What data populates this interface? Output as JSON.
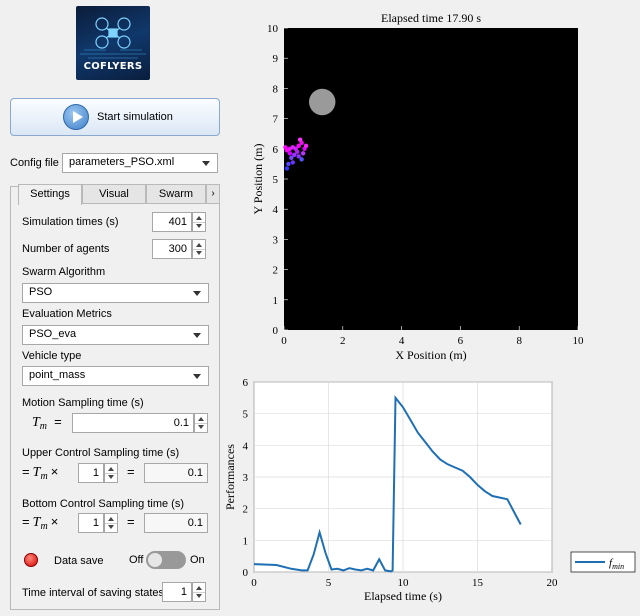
{
  "logo": {
    "text": "COFLYERS"
  },
  "start_button": {
    "label": "Start simulation"
  },
  "config": {
    "label": "Config file",
    "value": "parameters_PSO.xml"
  },
  "tabs": [
    {
      "label": "Settings"
    },
    {
      "label": "Visual"
    },
    {
      "label": "Swarm"
    }
  ],
  "settings": {
    "simulation_times": {
      "label": "Simulation times (s)",
      "value": "401"
    },
    "num_agents": {
      "label": "Number of agents",
      "value": "300"
    },
    "swarm_algorithm": {
      "label": "Swarm Algorithm",
      "value": "PSO"
    },
    "evaluation_metrics": {
      "label": "Evaluation Metrics",
      "value": "PSO_eva"
    },
    "vehicle_type": {
      "label": "Vehicle type",
      "value": "point_mass"
    },
    "motion_sampling": {
      "label": "Motion Sampling time (s)",
      "sym": "T",
      "sub": "m",
      "eq": "=",
      "value": "0.1"
    },
    "upper_control": {
      "label": "Upper Control Sampling time (s)",
      "prefix": "=",
      "sym": "T",
      "sub": "m",
      "times": "×",
      "multiplier": "1",
      "eq": "=",
      "value": "0.1"
    },
    "bottom_control": {
      "label": "Bottom Control Sampling time (s)",
      "prefix": "=",
      "sym": "T",
      "sub": "m",
      "times": "×",
      "multiplier": "1",
      "eq": "=",
      "value": "0.1"
    },
    "data_save": {
      "label": "Data save",
      "off": "Off",
      "on": "On",
      "state": "off",
      "led_color": "#d40000"
    },
    "save_interval": {
      "label": "Time interval of saving states",
      "value": "1"
    }
  },
  "chart_data": [
    {
      "type": "scatter",
      "title": "Elapsed time 17.90 s",
      "xlabel": "X Position (m)",
      "ylabel": "Y Position (m)",
      "xlim": [
        0,
        10
      ],
      "ylim": [
        0,
        10
      ],
      "xticks": [
        "0",
        "2",
        "4",
        "6",
        "8",
        "10"
      ],
      "yticks": [
        "0",
        "1",
        "2",
        "3",
        "4",
        "5",
        "6",
        "7",
        "8",
        "9",
        "10"
      ],
      "background": "#000000",
      "obstacle": {
        "x": 1.3,
        "y": 7.55,
        "r": 0.45,
        "color": "#9a9a9a"
      },
      "agents": [
        {
          "x": 0.1,
          "y": 5.95,
          "c": "#ff00ff"
        },
        {
          "x": 0.2,
          "y": 6.0,
          "c": "#ee11ff"
        },
        {
          "x": 0.3,
          "y": 6.05,
          "c": "#dd22ff"
        },
        {
          "x": 0.4,
          "y": 6.0,
          "c": "#cc22ff"
        },
        {
          "x": 0.5,
          "y": 6.1,
          "c": "#ff00ff"
        },
        {
          "x": 0.55,
          "y": 6.3,
          "c": "#ff33ff"
        },
        {
          "x": 0.6,
          "y": 6.2,
          "c": "#ee11ee"
        },
        {
          "x": 0.7,
          "y": 6.0,
          "c": "#dd00ff"
        },
        {
          "x": 0.65,
          "y": 5.85,
          "c": "#bb33ff"
        },
        {
          "x": 0.45,
          "y": 5.9,
          "c": "#aa22ee"
        },
        {
          "x": 0.35,
          "y": 5.8,
          "c": "#9933ff"
        },
        {
          "x": 0.25,
          "y": 5.7,
          "c": "#7744ff"
        },
        {
          "x": 0.15,
          "y": 5.5,
          "c": "#5544ff"
        },
        {
          "x": 0.1,
          "y": 5.35,
          "c": "#3333ff"
        },
        {
          "x": 0.3,
          "y": 5.55,
          "c": "#6633ff"
        },
        {
          "x": 0.5,
          "y": 5.75,
          "c": "#8833ff"
        },
        {
          "x": 0.6,
          "y": 5.65,
          "c": "#5555ff"
        },
        {
          "x": 0.2,
          "y": 5.85,
          "c": "#cc00ff"
        },
        {
          "x": 0.75,
          "y": 6.1,
          "c": "#ff22ff"
        },
        {
          "x": 0.05,
          "y": 6.05,
          "c": "#ff00ff"
        }
      ]
    },
    {
      "type": "line",
      "xlabel": "Elapsed time (s)",
      "ylabel": "Performances",
      "xlim": [
        0,
        20
      ],
      "ylim": [
        0,
        6
      ],
      "xticks": [
        "0",
        "5",
        "10",
        "15",
        "20"
      ],
      "yticks": [
        "0",
        "1",
        "2",
        "3",
        "4",
        "5",
        "6"
      ],
      "grid": true,
      "legend": {
        "placement": "right",
        "label": "f",
        "sub": "min"
      },
      "series": [
        {
          "name": "f_min",
          "color": "#1f6fb4",
          "x": [
            0,
            1.5,
            2.5,
            3.2,
            3.6,
            4.0,
            4.4,
            4.8,
            5.2,
            5.6,
            6.0,
            6.4,
            6.8,
            7.2,
            7.6,
            8.0,
            8.4,
            8.8,
            9.2,
            9.3,
            9.5,
            10,
            10.5,
            11,
            11.5,
            12,
            12.5,
            13,
            13.5,
            14,
            14.5,
            15,
            15.5,
            16,
            16.5,
            17,
            17.5,
            17.9
          ],
          "y": [
            0.25,
            0.22,
            0.1,
            0.05,
            0.05,
            0.55,
            1.25,
            0.6,
            0.08,
            0.1,
            0.05,
            0.12,
            0.08,
            0.05,
            0.1,
            0.05,
            0.4,
            0.05,
            0.02,
            0.05,
            5.5,
            5.2,
            4.8,
            4.4,
            4.1,
            3.8,
            3.55,
            3.4,
            3.3,
            3.2,
            3.0,
            2.75,
            2.55,
            2.4,
            2.35,
            2.3,
            1.85,
            1.5
          ]
        }
      ]
    }
  ]
}
